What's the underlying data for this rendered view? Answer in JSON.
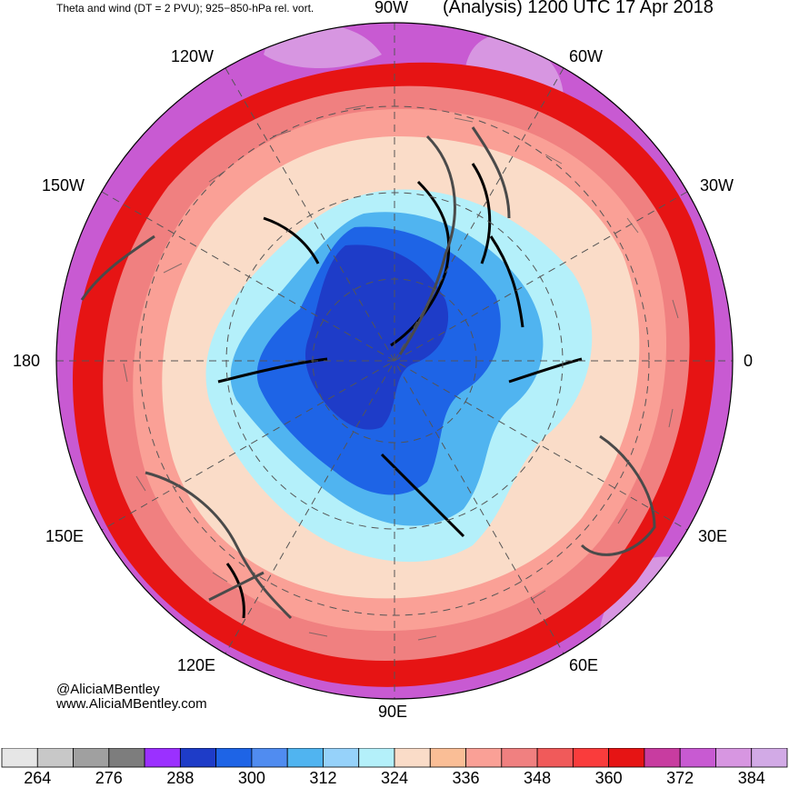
{
  "header": {
    "left_title": "Theta and wind (DT = 2 PVU); 925−850-hPa rel. vort.",
    "right_title": "(Analysis) 1200 UTC 17 Apr 2018"
  },
  "longitude_labels": {
    "top": "90W",
    "top_left": "120W",
    "top_right": "60W",
    "upper_left": "150W",
    "upper_right": "30W",
    "left": "180",
    "right": "0",
    "lower_left": "150E",
    "lower_right": "30E",
    "bottom_left": "120E",
    "bottom_right": "60E",
    "bottom": "90E"
  },
  "credits": {
    "twitter": "@AliciaMBentley",
    "website": "www.AliciaMBentley.com"
  },
  "colorbar": {
    "colors": [
      "#e6e6e6",
      "#c8c8c8",
      "#a0a0a0",
      "#7d7d7d",
      "#9b30ff",
      "#1e3cc8",
      "#1e64e6",
      "#508cf0",
      "#50b4f0",
      "#96d2fa",
      "#b4f0fa",
      "#fadcc8",
      "#fabe96",
      "#faa096",
      "#f08080",
      "#f05a5a",
      "#fa3c3c",
      "#e61414",
      "#c83ca0",
      "#c85ad2",
      "#d796e1",
      "#d2aae6"
    ],
    "tick_labels": [
      "264",
      "276",
      "288",
      "300",
      "312",
      "324",
      "336",
      "348",
      "360",
      "372",
      "384"
    ]
  },
  "map": {
    "projection": "north-polar-stereographic",
    "field": "potential temperature on dynamic tropopause",
    "colors": {
      "outer": "#c85ad2",
      "outer_light": "#d796e1",
      "warm_red": "#e61414",
      "pink": "#f08080",
      "salmon": "#faa096",
      "peach": "#fadcc8",
      "light_blue": "#b4f0fa",
      "mid_blue": "#50b4f0",
      "blue": "#1e64e6",
      "dark_blue": "#1e3cc8",
      "coast": "#4a4a4a",
      "grid": "#555555"
    }
  }
}
